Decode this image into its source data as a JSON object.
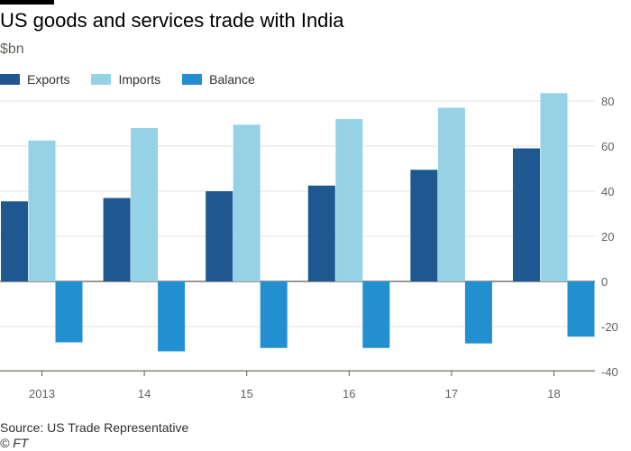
{
  "title": "US goods and services trade with India",
  "subtitle": "$bn",
  "source": "Source: US Trade Representative",
  "copyright": "© FT",
  "chart_data": {
    "type": "bar",
    "categories": [
      "2013",
      "14",
      "15",
      "16",
      "17",
      "18"
    ],
    "series": [
      {
        "name": "Exports",
        "color": "#1f5790",
        "values": [
          35.5,
          37,
          40,
          42.5,
          49.5,
          59
        ]
      },
      {
        "name": "Imports",
        "color": "#96d2e6",
        "values": [
          62.5,
          68,
          69.5,
          72,
          77,
          83.5
        ]
      },
      {
        "name": "Balance",
        "color": "#2290d0",
        "values": [
          -27,
          -31,
          -29.5,
          -29.5,
          -27.5,
          -24.5
        ]
      }
    ],
    "ylim": [
      -40,
      80
    ],
    "yticks": [
      80,
      60,
      40,
      20,
      0,
      -20,
      -40
    ],
    "ytick_labels": [
      "80",
      "60",
      "40",
      "20",
      "0",
      "-20",
      "-40"
    ],
    "grid": true,
    "legend_position": "top-left",
    "xlabel": "",
    "ylabel": ""
  }
}
